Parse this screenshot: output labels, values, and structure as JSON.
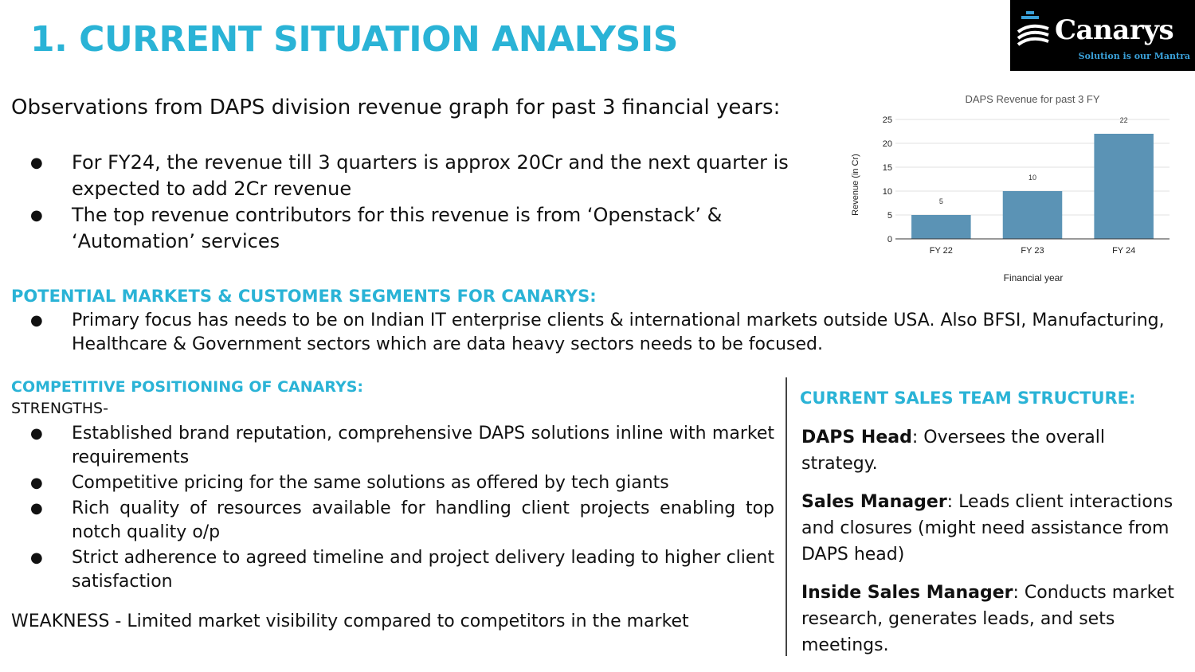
{
  "title": "1. CURRENT SITUATION ANALYSIS",
  "logo": {
    "name": "Canarys",
    "tagline": "Solution is our Mantra"
  },
  "observations": {
    "intro": "Observations from DAPS division revenue graph for past 3 financial years:",
    "bullets": [
      "For FY24, the revenue till 3 quarters is approx 20Cr and the next quarter is expected to add 2Cr revenue",
      "The top revenue contributors for this revenue is from ‘Openstack’ & ‘Automation’ services"
    ]
  },
  "markets": {
    "heading": "POTENTIAL MARKETS & CUSTOMER SEGMENTS FOR CANARYS:",
    "bullets": [
      "Primary focus has needs to be on Indian IT enterprise clients & international markets outside USA. Also BFSI, Manufacturing, Healthcare & Government sectors which are data heavy sectors needs to be focused."
    ]
  },
  "competitive": {
    "heading": "COMPETITIVE POSITIONING OF CANARYS:",
    "strengths_label": "STRENGTHS-",
    "strengths": [
      "Established brand reputation, comprehensive DAPS solutions inline with market requirements",
      "Competitive pricing for the same solutions as offered by tech giants",
      "Rich quality of resources available for handling client projects enabling top notch quality o/p",
      "Strict adherence to agreed timeline and project delivery leading to higher client satisfaction"
    ],
    "weakness": "WEAKNESS - Limited market visibility compared to competitors in the market"
  },
  "sales_team": {
    "heading": "CURRENT SALES TEAM STRUCTURE:",
    "roles": [
      {
        "role": "DAPS Head",
        "desc": ": Oversees the overall strategy."
      },
      {
        "role": "Sales Manager",
        "desc": ": Leads client interactions and closures (might need assistance from DAPS head)"
      },
      {
        "role": "Inside Sales Manager",
        "desc": ": Conducts market research, generates leads, and sets meetings."
      }
    ]
  },
  "colors": {
    "accent": "#2ab3d6",
    "bar": "#5b93b5"
  },
  "chart_data": {
    "type": "bar",
    "title": "DAPS Revenue for past 3 FY",
    "categories": [
      "FY 22",
      "FY 23",
      "FY 24"
    ],
    "values": [
      5,
      10,
      22
    ],
    "xlabel": "Financial year",
    "ylabel": "Revenue (in Cr)",
    "ylim": [
      0,
      25
    ],
    "yticks": [
      0,
      5,
      10,
      15,
      20,
      25
    ],
    "grid": true,
    "data_labels": true
  }
}
